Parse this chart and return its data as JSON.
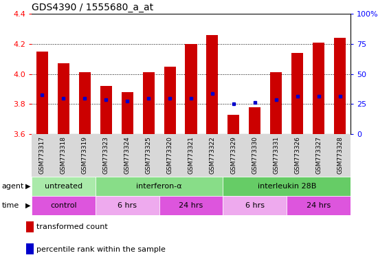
{
  "title": "GDS4390 / 1555680_a_at",
  "samples": [
    "GSM773317",
    "GSM773318",
    "GSM773319",
    "GSM773323",
    "GSM773324",
    "GSM773325",
    "GSM773320",
    "GSM773321",
    "GSM773322",
    "GSM773329",
    "GSM773330",
    "GSM773331",
    "GSM773326",
    "GSM773327",
    "GSM773328"
  ],
  "bar_tops": [
    4.15,
    4.07,
    4.01,
    3.92,
    3.88,
    4.01,
    4.05,
    4.2,
    4.26,
    3.73,
    3.78,
    4.01,
    4.14,
    4.21,
    4.24
  ],
  "percentile_vals": [
    3.86,
    3.84,
    3.84,
    3.83,
    3.82,
    3.84,
    3.84,
    3.84,
    3.87,
    3.8,
    3.81,
    3.83,
    3.85,
    3.85,
    3.85
  ],
  "ylim": [
    3.6,
    4.4
  ],
  "yticks_left": [
    3.6,
    3.8,
    4.0,
    4.2,
    4.4
  ],
  "yticks_right": [
    0,
    25,
    50,
    75,
    100
  ],
  "bar_color": "#cc0000",
  "dot_color": "#0000cc",
  "agent_groups": [
    {
      "label": "untreated",
      "start": 0,
      "end": 3,
      "color": "#aaeaaa"
    },
    {
      "label": "interferon-α",
      "start": 3,
      "end": 9,
      "color": "#88dd88"
    },
    {
      "label": "interleukin 28B",
      "start": 9,
      "end": 15,
      "color": "#66cc66"
    }
  ],
  "time_groups": [
    {
      "label": "control",
      "start": 0,
      "end": 3,
      "color": "#dd55dd"
    },
    {
      "label": "6 hrs",
      "start": 3,
      "end": 6,
      "color": "#eeaaee"
    },
    {
      "label": "24 hrs",
      "start": 6,
      "end": 9,
      "color": "#dd55dd"
    },
    {
      "label": "6 hrs",
      "start": 9,
      "end": 12,
      "color": "#eeaaee"
    },
    {
      "label": "24 hrs",
      "start": 12,
      "end": 15,
      "color": "#dd55dd"
    }
  ],
  "legend_items": [
    {
      "color": "#cc0000",
      "label": "transformed count"
    },
    {
      "color": "#0000cc",
      "label": "percentile rank within the sample"
    }
  ]
}
